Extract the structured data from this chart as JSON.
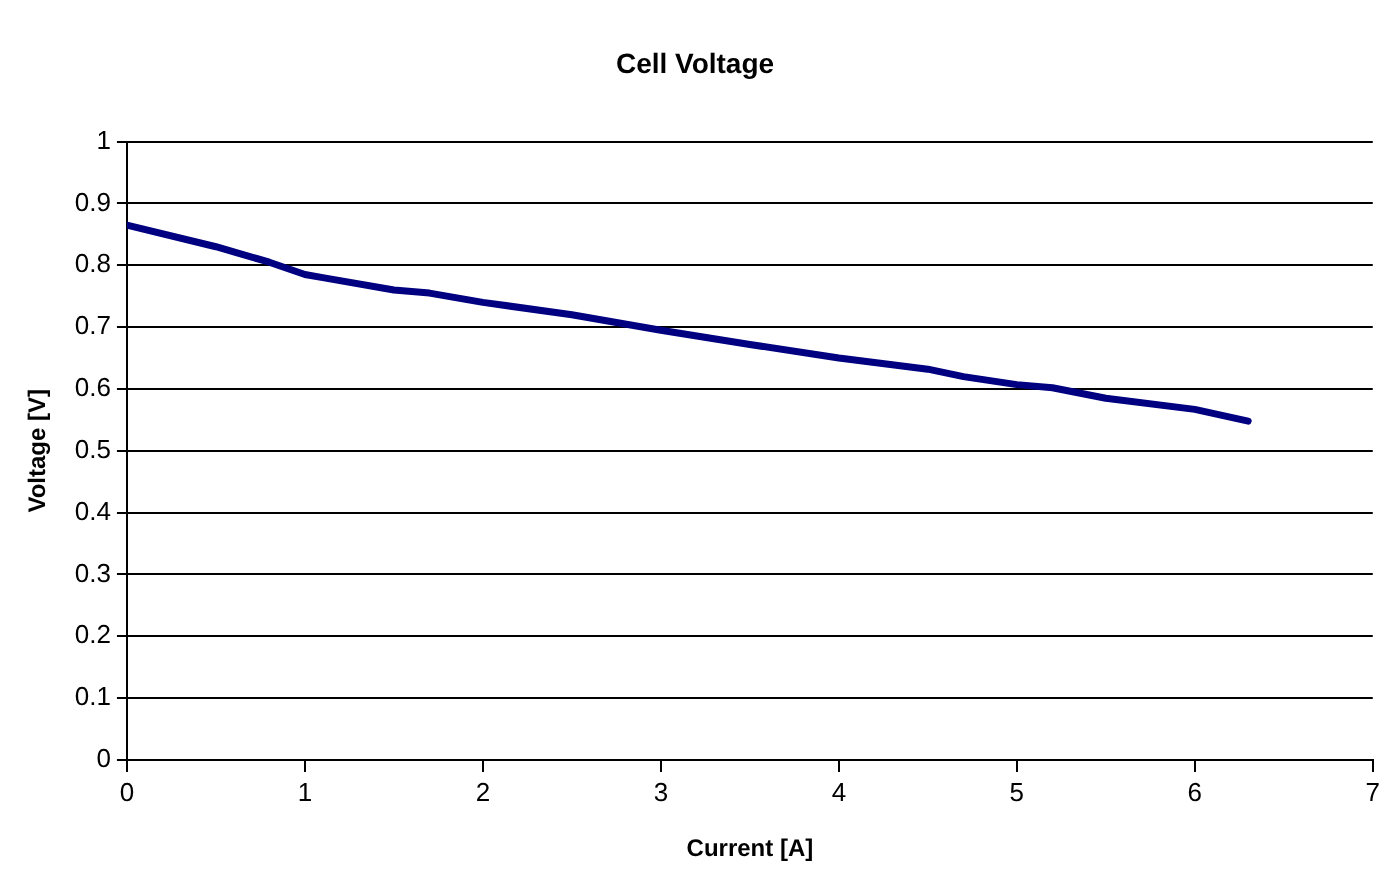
{
  "chart_data": {
    "type": "line",
    "title": "Cell Voltage",
    "xlabel": "Current [A]",
    "ylabel": "Voltage [V]",
    "x": [
      0,
      0.5,
      0.8,
      1,
      1.1,
      1.5,
      1.7,
      2,
      2.5,
      3,
      3.5,
      4,
      4.5,
      4.7,
      5,
      5.2,
      5.5,
      6,
      6.3
    ],
    "series": [
      {
        "color": "#000080",
        "values": [
          0.865,
          0.83,
          0.805,
          0.785,
          0.78,
          0.76,
          0.755,
          0.74,
          0.72,
          0.695,
          0.672,
          0.65,
          0.632,
          0.62,
          0.607,
          0.602,
          0.585,
          0.567,
          0.548
        ]
      }
    ],
    "xlim": [
      0,
      7
    ],
    "xticks": [
      0,
      1,
      2,
      3,
      4,
      5,
      6,
      7
    ],
    "ylim": [
      0,
      1
    ],
    "yticks": [
      0,
      0.1,
      0.2,
      0.3,
      0.4,
      0.5,
      0.6,
      0.7,
      0.8,
      0.9,
      1
    ],
    "grid": "y",
    "legend": false,
    "marker": "none",
    "line_style": "solid"
  }
}
